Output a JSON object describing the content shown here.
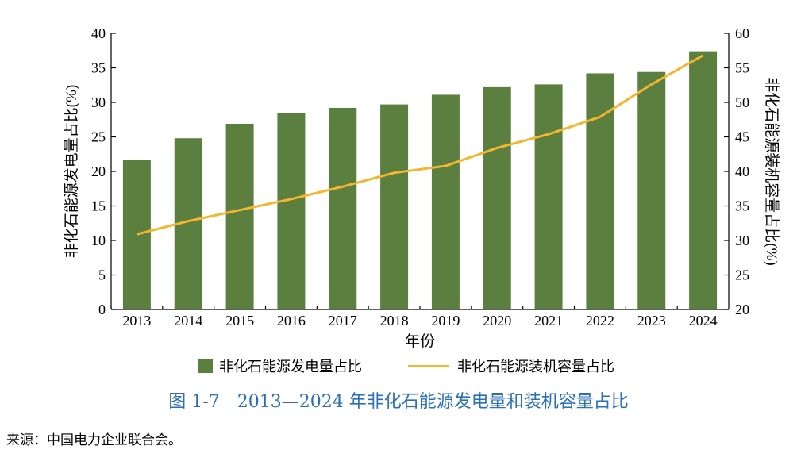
{
  "chart_data": {
    "type": "bar",
    "categories": [
      "2013",
      "2014",
      "2015",
      "2016",
      "2017",
      "2018",
      "2019",
      "2020",
      "2021",
      "2022",
      "2023",
      "2024"
    ],
    "series": [
      {
        "name": "非化石能源发电量占比",
        "type": "bar",
        "axis": "left",
        "color": "#5b7f3f",
        "values": [
          21.7,
          24.8,
          26.9,
          28.5,
          29.2,
          29.7,
          31.1,
          32.2,
          32.6,
          34.2,
          34.4,
          37.4
        ]
      },
      {
        "name": "非化石能源装机容量占比",
        "type": "line",
        "axis": "right",
        "color": "#f5b52f",
        "values": [
          30.9,
          32.8,
          34.4,
          36.0,
          37.8,
          39.8,
          40.8,
          43.4,
          45.4,
          47.9,
          52.6,
          56.8
        ]
      }
    ],
    "xlabel": "年份",
    "ylabel": "非化石能源发电量占比(%)",
    "y2label": "非化石能源装机容量占比(%)",
    "ylim": [
      0,
      40
    ],
    "y2lim": [
      20,
      60
    ],
    "yticks": [
      0,
      5,
      10,
      15,
      20,
      25,
      30,
      35,
      40
    ],
    "y2ticks": [
      20,
      25,
      30,
      35,
      40,
      45,
      50,
      55,
      60
    ]
  },
  "figure": {
    "title": "图 1-7　2013—2024 年非化石能源发电量和装机容量占比",
    "title_color": "#2b6fb6",
    "source": "来源：中国电力企业联合会。"
  }
}
